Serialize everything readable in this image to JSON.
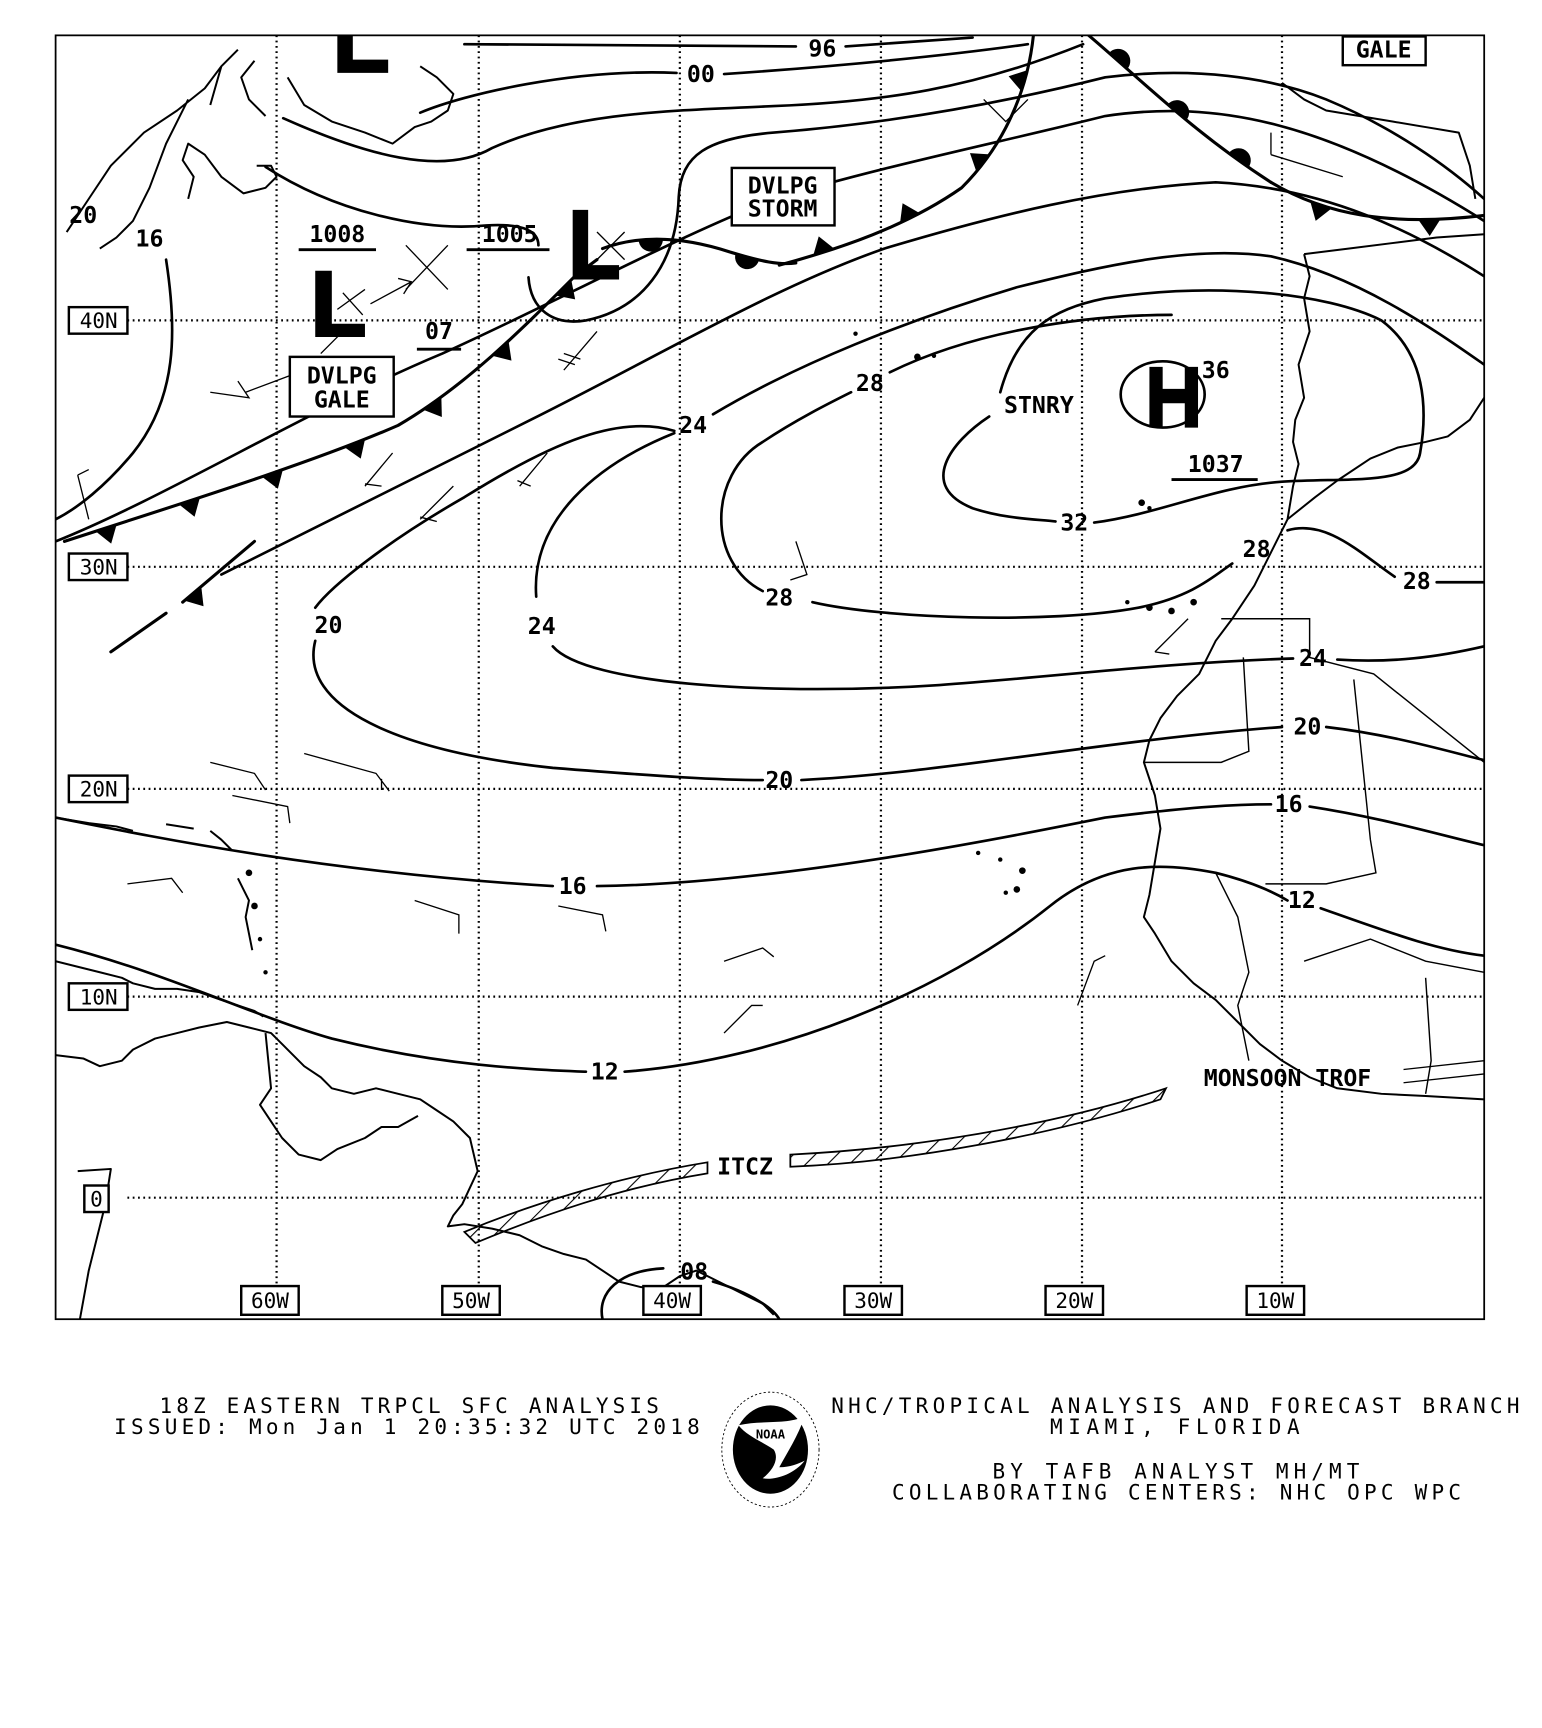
{
  "map": {
    "latitude_labels": [
      "40N",
      "30N",
      "20N",
      "10N",
      "0"
    ],
    "longitude_labels": [
      "60W",
      "50W",
      "40W",
      "30W",
      "20W",
      "10W"
    ],
    "pressure_centers": [
      {
        "symbol": "L",
        "pressure": "1008"
      },
      {
        "symbol": "L",
        "pressure": "1005"
      },
      {
        "symbol": "L",
        "pressure": "07"
      },
      {
        "symbol": "H",
        "pressure": "1037",
        "short_label": "36"
      }
    ],
    "isobar_labels": [
      "96",
      "00",
      "16",
      "20",
      "28",
      "24",
      "28",
      "20",
      "24",
      "32",
      "28",
      "28",
      "24",
      "20",
      "20",
      "16",
      "16",
      "12",
      "12",
      "08"
    ],
    "warnings": {
      "dvlpg_gale": [
        "DVLPG",
        "GALE"
      ],
      "dvlpg_storm": [
        "DVLPG",
        "STORM"
      ],
      "gale": "GALE"
    },
    "features": {
      "stationary": "STNRY",
      "itcz": "ITCZ",
      "monsoon_trough": "MONSOON TROF"
    }
  },
  "footer": {
    "title": "18Z EASTERN TRPCL SFC ANALYSIS",
    "issued": "ISSUED: Mon Jan 1 20:35:32 UTC 2018",
    "office": "NHC/TROPICAL ANALYSIS AND FORECAST BRANCH",
    "location": "MIAMI,  FLORIDA",
    "analyst": "BY TAFB ANALYST  MH/MT",
    "collaborating": "COLLABORATING CENTERS: NHC OPC WPC"
  },
  "logo": {
    "name": "NOAA",
    "ring_top": "NATIONAL OCEANIC AND ATMOSPHERIC ADMINISTRATION",
    "ring_bottom": "U.S. DEPARTMENT OF COMMERCE"
  }
}
